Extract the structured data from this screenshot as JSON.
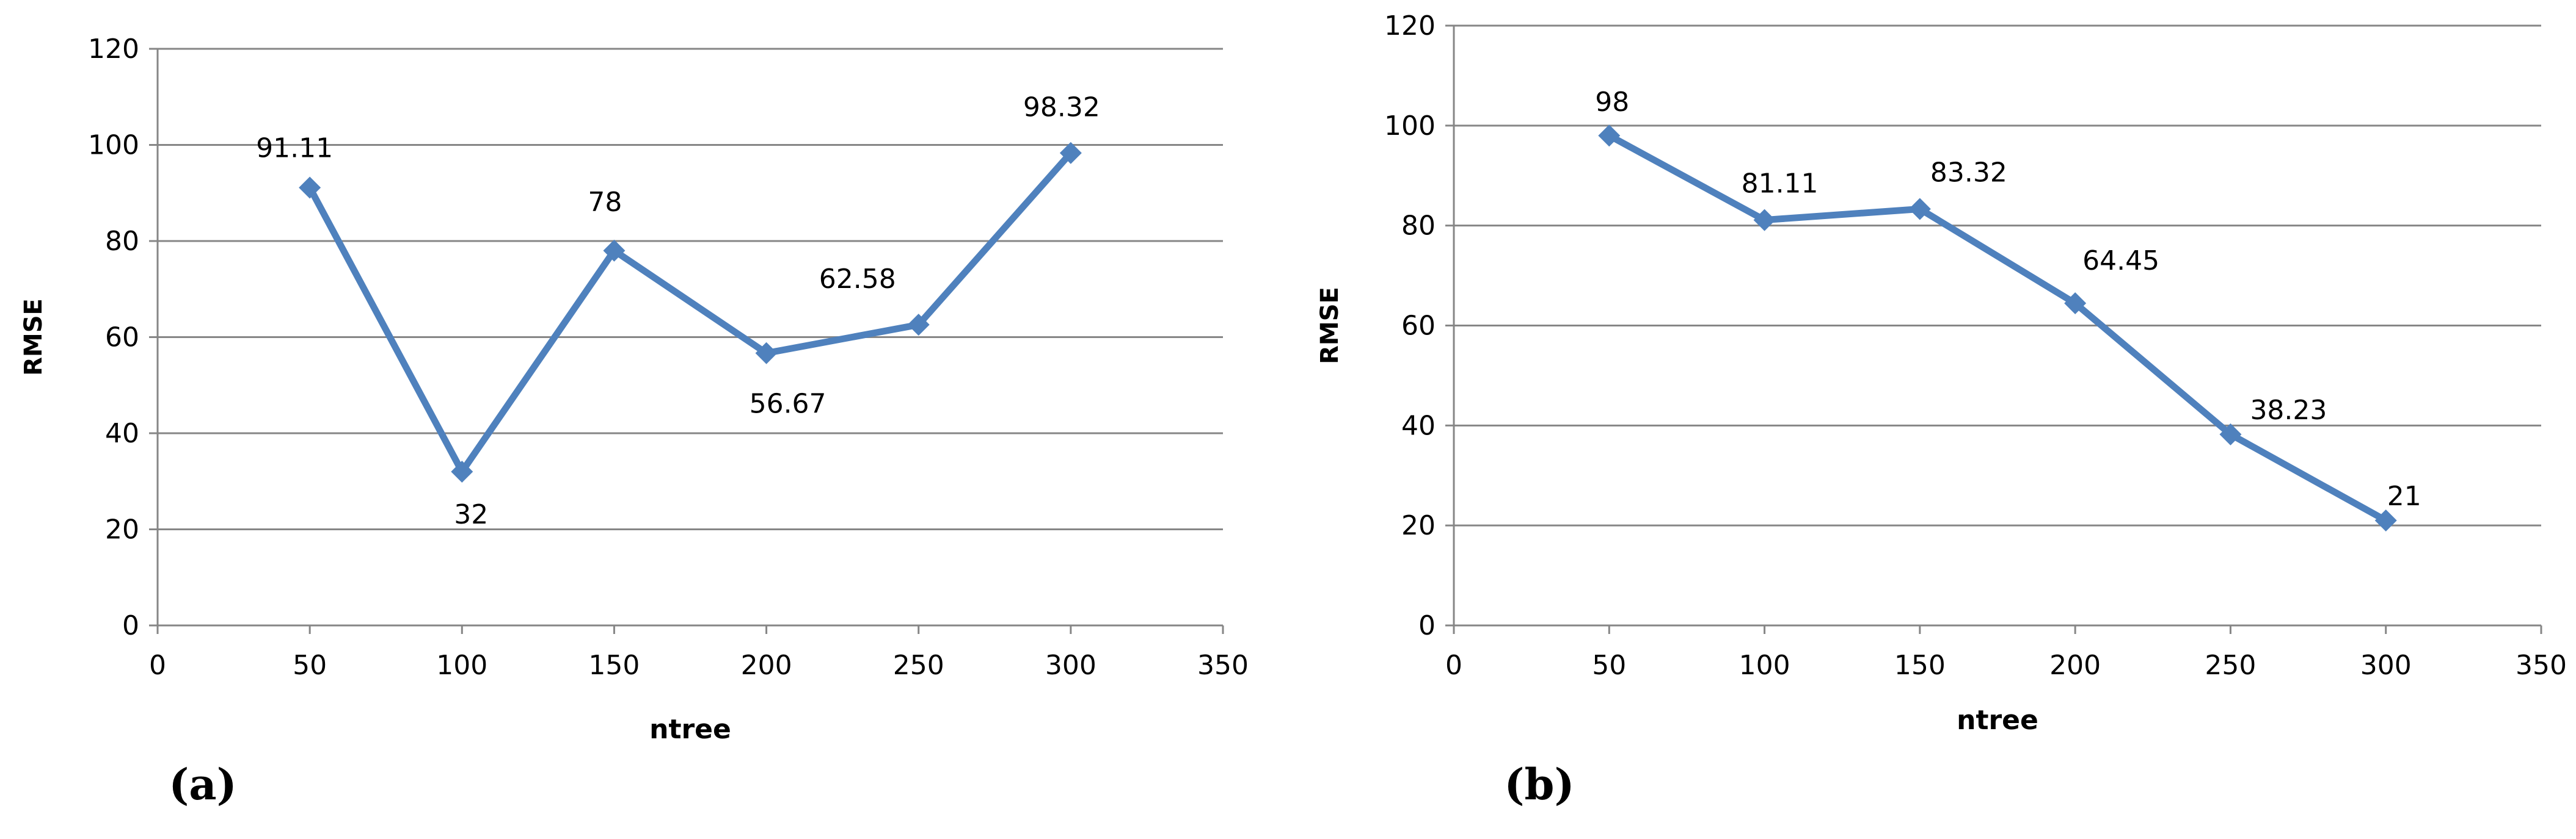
{
  "series_color": "#4f81bd",
  "chart_data": [
    {
      "type": "line",
      "panel_label": "(a)",
      "xlabel": "ntree",
      "ylabel": "RMSE",
      "xlim": [
        0,
        350
      ],
      "ylim": [
        0,
        120
      ],
      "x_ticks": [
        0,
        50,
        100,
        150,
        200,
        250,
        300,
        350
      ],
      "y_ticks": [
        0,
        20,
        40,
        60,
        80,
        100,
        120
      ],
      "grid": true,
      "legend": "none",
      "series": [
        {
          "x": [
            50,
            100,
            150,
            200,
            250,
            300
          ],
          "y": [
            91.11,
            32,
            78,
            56.67,
            62.58,
            98.32
          ],
          "labels": [
            "91.11",
            "32",
            "78",
            "56.67",
            "62.58",
            "98.32"
          ]
        }
      ]
    },
    {
      "type": "line",
      "panel_label": "(b)",
      "xlabel": "ntree",
      "ylabel": "RMSE",
      "xlim": [
        0,
        350
      ],
      "ylim": [
        0,
        120
      ],
      "x_ticks": [
        0,
        50,
        100,
        150,
        200,
        250,
        300,
        350
      ],
      "y_ticks": [
        0,
        20,
        40,
        60,
        80,
        100,
        120
      ],
      "grid": true,
      "legend": "none",
      "series": [
        {
          "x": [
            50,
            100,
            150,
            200,
            250,
            300
          ],
          "y": [
            98,
            81.11,
            83.32,
            64.45,
            38.23,
            21
          ],
          "labels": [
            "98",
            "81.11",
            "83.32",
            "64.45",
            "38.23",
            "21"
          ]
        }
      ]
    }
  ]
}
